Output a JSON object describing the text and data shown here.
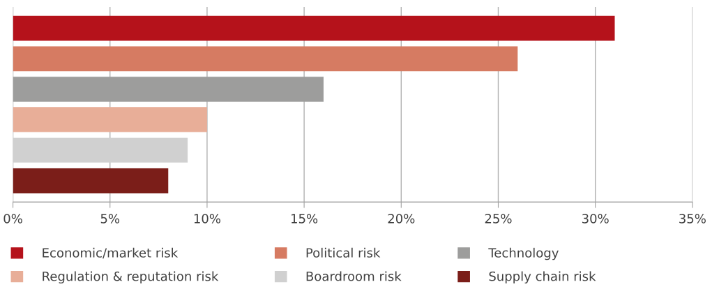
{
  "chart_data": {
    "type": "bar",
    "orientation": "horizontal",
    "categories": [
      null,
      null,
      null,
      null,
      null,
      null
    ],
    "series": [
      {
        "name": "Economic/market risk",
        "color": "#b5121b",
        "values": [
          31,
          null,
          null,
          null,
          null,
          null
        ]
      },
      {
        "name": "Political risk",
        "color": "#d67b62",
        "values": [
          null,
          26,
          null,
          null,
          null,
          null
        ]
      },
      {
        "name": "Technology",
        "color": "#9d9d9c",
        "values": [
          null,
          null,
          16,
          null,
          null,
          null
        ]
      },
      {
        "name": "Regulation & reputation risk",
        "color": "#e8ae98",
        "values": [
          null,
          null,
          null,
          10,
          null,
          null
        ]
      },
      {
        "name": "Boardroom risk",
        "color": "#d0d0d0",
        "values": [
          null,
          null,
          null,
          null,
          9,
          null
        ]
      },
      {
        "name": "Supply chain risk",
        "color": "#7b1e19",
        "values": [
          null,
          null,
          null,
          null,
          null,
          8
        ]
      }
    ],
    "xlim": [
      0,
      35
    ],
    "xticks": [
      {
        "value": 0,
        "label": "0%"
      },
      {
        "value": 5,
        "label": "5%"
      },
      {
        "value": 10,
        "label": "10%"
      },
      {
        "value": 15,
        "label": "15%"
      },
      {
        "value": 20,
        "label": "20%"
      },
      {
        "value": 25,
        "label": "25%"
      },
      {
        "value": 30,
        "label": "30%"
      },
      {
        "value": 35,
        "label": "35%"
      }
    ],
    "grid": "x",
    "legend": "bottom"
  }
}
